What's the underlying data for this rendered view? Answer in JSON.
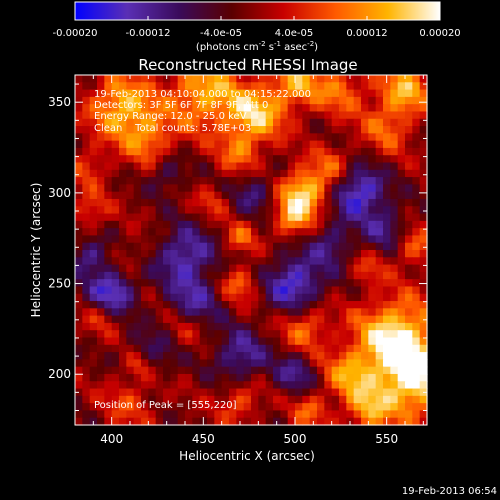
{
  "chart_data": {
    "type": "heatmap",
    "title": "Reconstructed RHESSI Image",
    "xlabel": "Heliocentric X (arcsec)",
    "ylabel": "Heliocentric Y (arcsec)",
    "xlim": [
      380,
      572
    ],
    "ylim": [
      172,
      365
    ],
    "xticks": [
      "400",
      "450",
      "500",
      "550"
    ],
    "yticks": [
      "200",
      "250",
      "300",
      "350"
    ],
    "x_tick_values": [
      400,
      450,
      500,
      550
    ],
    "y_tick_values": [
      200,
      250,
      300,
      350
    ],
    "colorbar": {
      "range": [
        -0.0002,
        0.0002
      ],
      "tick_labels": [
        "-0.00020",
        "-0.00012",
        "-4.0e-05",
        "4.0e-05",
        "0.00012",
        "0.00020"
      ],
      "tick_values": [
        -0.0002,
        -0.00012,
        -4e-05,
        4e-05,
        0.00012,
        0.0002
      ],
      "unit_label_main": "(photons cm",
      "unit_sup1": "-2",
      "unit_mid": " s",
      "unit_sup2": "-1",
      "unit_end": " asec",
      "unit_sup3": "-2",
      "unit_close": ")",
      "colors": [
        "#0000ff",
        "#5a2fb5",
        "#3a0a5a",
        "#5a0000",
        "#c80000",
        "#ff5a00",
        "#ffb400",
        "#ffffff"
      ]
    },
    "annotations": {
      "time_range": "19-Feb-2013 04:10:04.000 to 04:15:22.000",
      "detectors": "Detectors: 3F 5F 6F 7F 8F 9F, Att 0",
      "energy": "Energy Range: 12.0 - 25.0 keV",
      "clean": "Clean    Total counts: 5.78E+03",
      "peak": "Position of Peak = [555,220]"
    },
    "blobs": [
      {
        "x": 405,
        "y": 348,
        "s": 12,
        "v": 0.00016
      },
      {
        "x": 420,
        "y": 330,
        "s": 10,
        "v": 0.00011
      },
      {
        "x": 450,
        "y": 355,
        "s": 14,
        "v": 0.00015
      },
      {
        "x": 478,
        "y": 343,
        "s": 11,
        "v": 0.00016
      },
      {
        "x": 470,
        "y": 322,
        "s": 8,
        "v": 9e-05
      },
      {
        "x": 500,
        "y": 360,
        "s": 10,
        "v": 0.00013
      },
      {
        "x": 525,
        "y": 357,
        "s": 10,
        "v": 0.0001
      },
      {
        "x": 560,
        "y": 357,
        "s": 10,
        "v": 0.00014
      },
      {
        "x": 550,
        "y": 336,
        "s": 10,
        "v": 9e-05
      },
      {
        "x": 505,
        "y": 300,
        "s": 9,
        "v": 0.00019
      },
      {
        "x": 498,
        "y": 285,
        "s": 7,
        "v": 0.00012
      },
      {
        "x": 520,
        "y": 315,
        "s": 8,
        "v": 8e-05
      },
      {
        "x": 388,
        "y": 315,
        "s": 8,
        "v": 7e-05
      },
      {
        "x": 388,
        "y": 290,
        "s": 7,
        "v": 8e-05
      },
      {
        "x": 470,
        "y": 275,
        "s": 6,
        "v": 9e-05
      },
      {
        "x": 470,
        "y": 250,
        "s": 7,
        "v": 0.0001
      },
      {
        "x": 455,
        "y": 295,
        "s": 6,
        "v": 6e-05
      },
      {
        "x": 410,
        "y": 265,
        "s": 6,
        "v": 5e-05
      },
      {
        "x": 565,
        "y": 270,
        "s": 8,
        "v": 9e-05
      },
      {
        "x": 540,
        "y": 258,
        "s": 6,
        "v": 6e-05
      },
      {
        "x": 395,
        "y": 232,
        "s": 7,
        "v": 7e-05
      },
      {
        "x": 440,
        "y": 225,
        "s": 7,
        "v": 5e-05
      },
      {
        "x": 506,
        "y": 226,
        "s": 9,
        "v": 0.00011
      },
      {
        "x": 555,
        "y": 220,
        "s": 15,
        "v": 0.0002
      },
      {
        "x": 565,
        "y": 195,
        "s": 14,
        "v": 0.00018
      },
      {
        "x": 530,
        "y": 200,
        "s": 10,
        "v": 0.00012
      },
      {
        "x": 540,
        "y": 180,
        "s": 9,
        "v": 0.00012
      },
      {
        "x": 410,
        "y": 185,
        "s": 10,
        "v": 7e-05
      },
      {
        "x": 415,
        "y": 205,
        "s": 6,
        "v": 0.0001
      },
      {
        "x": 470,
        "y": 185,
        "s": 8,
        "v": 9e-05
      },
      {
        "x": 508,
        "y": 180,
        "s": 7,
        "v": 9e-05
      },
      {
        "x": 430,
        "y": 310,
        "s": 7,
        "v": -8e-05
      },
      {
        "x": 400,
        "y": 245,
        "s": 9,
        "v": -0.00016
      },
      {
        "x": 440,
        "y": 265,
        "s": 11,
        "v": -0.00014
      },
      {
        "x": 478,
        "y": 300,
        "s": 8,
        "v": -9e-05
      },
      {
        "x": 535,
        "y": 300,
        "s": 10,
        "v": -0.00017
      },
      {
        "x": 550,
        "y": 280,
        "s": 8,
        "v": -0.0001
      },
      {
        "x": 500,
        "y": 250,
        "s": 11,
        "v": -0.00016
      },
      {
        "x": 445,
        "y": 240,
        "s": 10,
        "v": -0.0001
      },
      {
        "x": 420,
        "y": 210,
        "s": 9,
        "v": -9e-05
      },
      {
        "x": 470,
        "y": 210,
        "s": 10,
        "v": -0.00012
      },
      {
        "x": 500,
        "y": 200,
        "s": 8,
        "v": -0.0001
      },
      {
        "x": 388,
        "y": 265,
        "s": 7,
        "v": -0.00011
      },
      {
        "x": 520,
        "y": 272,
        "s": 8,
        "v": -0.0001
      }
    ]
  },
  "footer": {
    "timestamp": "19-Feb-2013 06:54"
  }
}
